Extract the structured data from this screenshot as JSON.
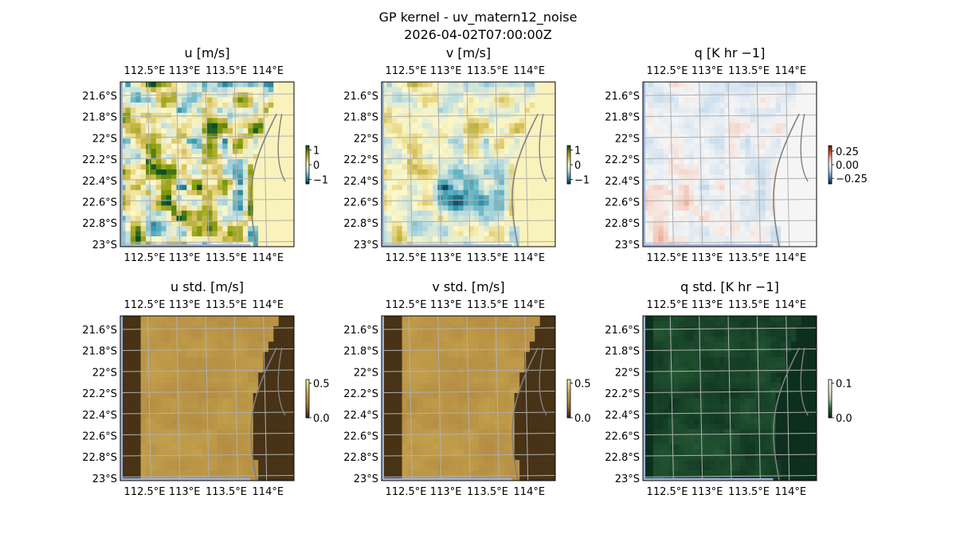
{
  "figure": {
    "title_line1": "GP kernel - uv_matern12_noise",
    "title_line2": "2026-04-02T07:00:00Z"
  },
  "chart_data": [
    {
      "type": "heatmap",
      "title": "u [m/s]",
      "x_ticks": [
        "112.5°E",
        "113°E",
        "113.5°E",
        "114°E"
      ],
      "y_ticks": [
        "21.6°S",
        "21.8°S",
        "22°S",
        "22.2°S",
        "22.4°S",
        "22.6°S",
        "22.8°S",
        "23°S"
      ],
      "colorbar": {
        "ticks": [
          "1",
          "0",
          "−1"
        ],
        "values": [
          1,
          0,
          -1
        ],
        "range": [
          -1.3,
          1.3
        ]
      },
      "colormap": [
        "#054f2a",
        "#7f9a06",
        "#d8c05a",
        "#fdf8c8",
        "#b9dbe2",
        "#3c9fb2",
        "#083a57"
      ],
      "field": "u"
    },
    {
      "type": "heatmap",
      "title": "v [m/s]",
      "x_ticks": [
        "112.5°E",
        "113°E",
        "113.5°E",
        "114°E"
      ],
      "y_ticks": [
        "21.6°S",
        "21.8°S",
        "22°S",
        "22.2°S",
        "22.4°S",
        "22.6°S",
        "22.8°S",
        "23°S"
      ],
      "colorbar": {
        "ticks": [
          "1",
          "0",
          "−1"
        ],
        "values": [
          1,
          0,
          -1
        ],
        "range": [
          -1.3,
          1.3
        ]
      },
      "colormap": [
        "#054f2a",
        "#7f9a06",
        "#d8c05a",
        "#fdf8c8",
        "#b9dbe2",
        "#3c9fb2",
        "#083a57"
      ],
      "field": "v"
    },
    {
      "type": "heatmap",
      "title": "q [K hr −1]",
      "x_ticks": [
        "112.5°E",
        "113°E",
        "113.5°E",
        "114°E"
      ],
      "y_ticks": [
        "21.6°S",
        "21.8°S",
        "22°S",
        "22.2°S",
        "22.4°S",
        "22.6°S",
        "22.8°S",
        "23°S"
      ],
      "colorbar": {
        "ticks": [
          "0.25",
          "0.00",
          "−0.25"
        ],
        "values": [
          0.25,
          0,
          -0.25
        ],
        "range": [
          -0.35,
          0.35
        ]
      },
      "colormap": [
        "#6a1a0c",
        "#d0533a",
        "#f4c6b4",
        "#f5f5f5",
        "#c2d9ec",
        "#4a8cc2",
        "#0c2b55"
      ],
      "field": "q"
    },
    {
      "type": "heatmap",
      "title": "u std. [m/s]",
      "x_ticks": [
        "112.5°E",
        "113°E",
        "113.5°E",
        "114°E"
      ],
      "y_ticks": [
        "21.6°S",
        "21.8°S",
        "22°S",
        "22.2°S",
        "22.4°S",
        "22.6°S",
        "22.8°S",
        "23°S"
      ],
      "colorbar": {
        "ticks": [
          "0.5",
          "0.0"
        ],
        "values": [
          0.5,
          0
        ],
        "range": [
          0,
          0.55
        ]
      },
      "colormap": [
        "#e6f5b0",
        "#c7a64e",
        "#a67a3a",
        "#3c2a12"
      ],
      "field": "ustd"
    },
    {
      "type": "heatmap",
      "title": "v std. [m/s]",
      "x_ticks": [
        "112.5°E",
        "113°E",
        "113.5°E",
        "114°E"
      ],
      "y_ticks": [
        "21.6°S",
        "21.8°S",
        "22°S",
        "22.2°S",
        "22.4°S",
        "22.6°S",
        "22.8°S",
        "23°S"
      ],
      "colorbar": {
        "ticks": [
          "0.5",
          "0.0"
        ],
        "values": [
          0.5,
          0
        ],
        "range": [
          0,
          0.55
        ]
      },
      "colormap": [
        "#e6f5b0",
        "#c7a64e",
        "#a67a3a",
        "#3c2a12"
      ],
      "field": "vstd"
    },
    {
      "type": "heatmap",
      "title": "q std. [K hr −1]",
      "x_ticks": [
        "112.5°E",
        "113°E",
        "113.5°E",
        "114°E"
      ],
      "y_ticks": [
        "21.6°S",
        "21.8°S",
        "22°S",
        "22.2°S",
        "22.4°S",
        "22.6°S",
        "22.8°S",
        "23°S"
      ],
      "colorbar": {
        "ticks": [
          "0.1",
          "0.0"
        ],
        "values": [
          0.1,
          0
        ],
        "range": [
          0,
          0.11
        ]
      },
      "colormap": [
        "#fff5f3",
        "#e4e8dc",
        "#b9c8a8",
        "#2e6a3e",
        "#0a2a1a"
      ],
      "field": "qstd"
    }
  ],
  "colors": {
    "ocean_edge": "#9fb4dc",
    "gridline": "#b0b0b0",
    "coastline": "#808080"
  }
}
